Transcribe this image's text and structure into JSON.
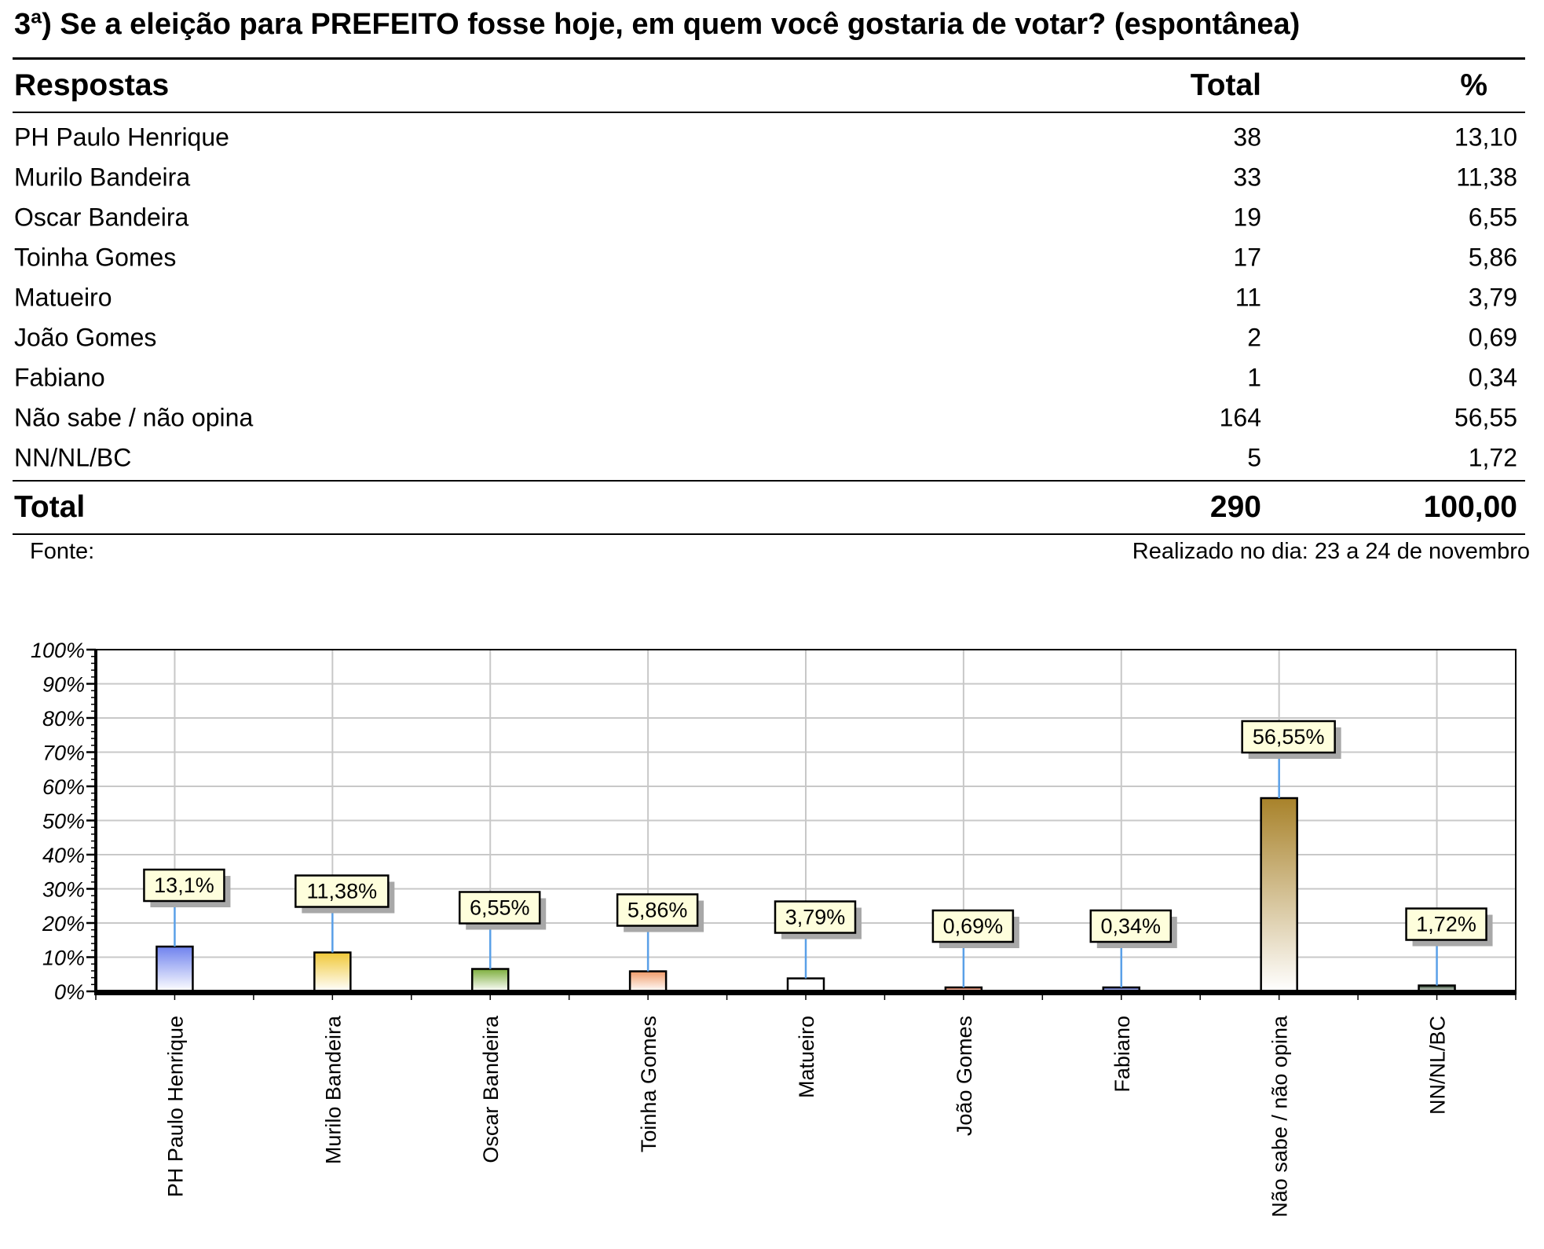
{
  "title": "3ª) Se a eleição para PREFEITO fosse hoje, em quem você gostaria de votar? (espontânea)",
  "table": {
    "headers": {
      "label": "Respostas",
      "total": "Total",
      "pct": "%"
    },
    "rows": [
      {
        "label": "PH Paulo Henrique",
        "total": "38",
        "pct": "13,10"
      },
      {
        "label": "Murilo Bandeira",
        "total": "33",
        "pct": "11,38"
      },
      {
        "label": "Oscar Bandeira",
        "total": "19",
        "pct": "6,55"
      },
      {
        "label": "Toinha Gomes",
        "total": "17",
        "pct": "5,86"
      },
      {
        "label": "Matueiro",
        "total": "11",
        "pct": "3,79"
      },
      {
        "label": "João Gomes",
        "total": "2",
        "pct": "0,69"
      },
      {
        "label": "Fabiano",
        "total": "1",
        "pct": "0,34"
      },
      {
        "label": "Não sabe / não opina",
        "total": "164",
        "pct": "56,55"
      },
      {
        "label": "NN/NL/BC",
        "total": "5",
        "pct": "1,72"
      }
    ],
    "total_row": {
      "label": "Total",
      "total": "290",
      "pct": "100,00"
    }
  },
  "footer": {
    "source": "Fonte:",
    "date": "Realizado no dia: 23 a 24 de novembro"
  },
  "chart_data": {
    "type": "bar",
    "categories": [
      "PH Paulo Henrique",
      "Murilo Bandeira",
      "Oscar Bandeira",
      "Toinha Gomes",
      "Matueiro",
      "João Gomes",
      "Fabiano",
      "Não sabe / não opina",
      "NN/NL/BC"
    ],
    "values": [
      13.1,
      11.38,
      6.55,
      5.86,
      3.79,
      0.69,
      0.34,
      56.55,
      1.72
    ],
    "data_labels": [
      "13,1%",
      "11,38%",
      "6,55%",
      "5,86%",
      "3,79%",
      "0,69%",
      "0,34%",
      "56,55%",
      "1,72%"
    ],
    "bar_colors": [
      "#6f82ee",
      "#f0c838",
      "#7cae3c",
      "#f09a68",
      "#ffffff",
      "#e05a30",
      "#3048c8",
      "#a8822a",
      "#1e3a1e"
    ],
    "y_ticks": [
      "0%",
      "10%",
      "20%",
      "30%",
      "40%",
      "50%",
      "60%",
      "70%",
      "80%",
      "90%",
      "100%"
    ],
    "ylim": [
      0,
      100
    ],
    "grid": true,
    "xlabel": "",
    "ylabel": ""
  }
}
